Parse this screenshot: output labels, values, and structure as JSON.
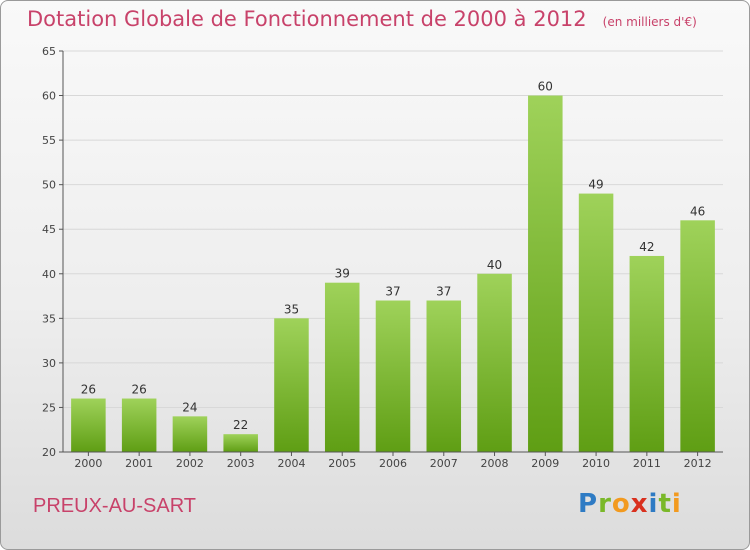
{
  "header": {
    "title": "Dotation Globale de Fonctionnement de 2000 à 2012",
    "unit": "(en milliers d'€)"
  },
  "footer": {
    "place": "PREUX-AU-SART",
    "logo_letters": [
      "P",
      "r",
      "o",
      "x",
      "i",
      "t",
      "i"
    ]
  },
  "chart_data": {
    "type": "bar",
    "title": "Dotation Globale de Fonctionnement de 2000 à 2012",
    "subtitle": "(en milliers d'€)",
    "xlabel": "",
    "ylabel": "",
    "categories": [
      "2000",
      "2001",
      "2002",
      "2003",
      "2004",
      "2005",
      "2006",
      "2007",
      "2008",
      "2009",
      "2010",
      "2011",
      "2012"
    ],
    "values": [
      26,
      26,
      24,
      22,
      35,
      39,
      37,
      37,
      40,
      60,
      49,
      42,
      46
    ],
    "ylim": [
      20,
      65
    ],
    "yticks": [
      20,
      25,
      30,
      35,
      40,
      45,
      50,
      55,
      60,
      65
    ],
    "grid": true,
    "legend": "none",
    "colors": {
      "bar_top": "#9fd25a",
      "bar_bottom": "#5f9e14",
      "axis": "#555555",
      "grid": "#d8d8d8"
    }
  }
}
